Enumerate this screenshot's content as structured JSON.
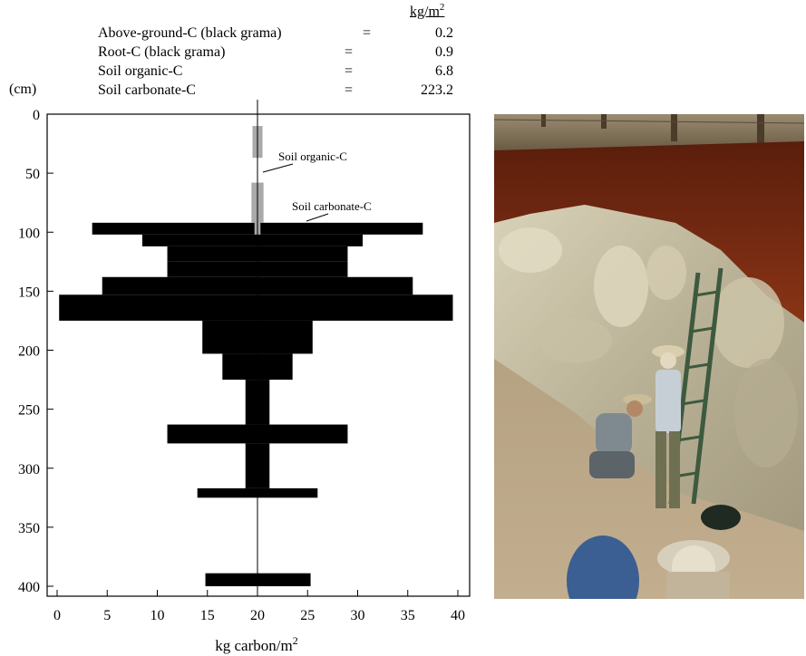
{
  "summary": {
    "unit_base": "kg/m",
    "unit_exp": "2",
    "rows": [
      {
        "label": "Above-ground-C (black grama)",
        "eq": "=",
        "value": "0.2"
      },
      {
        "label": "Root-C (black grama)",
        "eq": "=",
        "value": "0.9"
      },
      {
        "label": "Soil organic-C",
        "eq": "=",
        "value": "6.8"
      },
      {
        "label": "Soil carbonate-C",
        "eq": "=",
        "value": "223.2"
      }
    ]
  },
  "chart_data": {
    "type": "bar",
    "orientation": "horizontal-centered",
    "ylabel": "(cm)",
    "xlabel_base": "kg carbon/m",
    "xlabel_exp": "2",
    "xlim": [
      0,
      40
    ],
    "ylim": [
      0,
      410
    ],
    "x_ticks": [
      "0",
      "5",
      "10",
      "15",
      "20",
      "25",
      "30",
      "35",
      "40"
    ],
    "y_ticks": [
      "0",
      "50",
      "100",
      "150",
      "200",
      "250",
      "300",
      "350",
      "400"
    ],
    "center": 20,
    "annotations": [
      "Soil organic-C",
      "Soil carbonate-C"
    ],
    "series": [
      {
        "name": "Soil carbonate-C",
        "color": "#000000",
        "bars": [
          {
            "depth_top": 92,
            "depth_bottom": 102,
            "xmin": 3.5,
            "xmax": 36.5
          },
          {
            "depth_top": 102,
            "depth_bottom": 112,
            "xmin": 8.5,
            "xmax": 30.5
          },
          {
            "depth_top": 112,
            "depth_bottom": 125,
            "xmin": 11,
            "xmax": 29
          },
          {
            "depth_top": 125,
            "depth_bottom": 138,
            "xmin": 11,
            "xmax": 29
          },
          {
            "depth_top": 138,
            "depth_bottom": 153,
            "xmin": 4.5,
            "xmax": 35.5
          },
          {
            "depth_top": 153,
            "depth_bottom": 175,
            "xmin": 0.2,
            "xmax": 39.5
          },
          {
            "depth_top": 175,
            "depth_bottom": 203,
            "xmin": 14.5,
            "xmax": 25.5
          },
          {
            "depth_top": 203,
            "depth_bottom": 225,
            "xmin": 16.5,
            "xmax": 23.5
          },
          {
            "depth_top": 225,
            "depth_bottom": 263,
            "xmin": 18.8,
            "xmax": 21.2
          },
          {
            "depth_top": 263,
            "depth_bottom": 279,
            "xmin": 11,
            "xmax": 29
          },
          {
            "depth_top": 279,
            "depth_bottom": 317,
            "xmin": 18.8,
            "xmax": 21.2
          },
          {
            "depth_top": 317,
            "depth_bottom": 325,
            "xmin": 14,
            "xmax": 26
          },
          {
            "depth_top": 389,
            "depth_bottom": 400,
            "xmin": 14.8,
            "xmax": 25.3
          }
        ]
      },
      {
        "name": "Soil organic-C",
        "color": "#a9a9a9",
        "bars": [
          {
            "depth_top": 10,
            "depth_bottom": 37,
            "xmin": 19.5,
            "xmax": 20.5
          },
          {
            "depth_top": 58,
            "depth_bottom": 92,
            "xmin": 19.4,
            "xmax": 20.6
          },
          {
            "depth_top": 92,
            "depth_bottom": 102,
            "xmin": 19.7,
            "xmax": 20.3
          }
        ]
      }
    ],
    "colors": {
      "photo_soil_top": "#7a2a12",
      "photo_caliche": "#c9c2a6",
      "photo_ground": "#b8a68a"
    }
  }
}
